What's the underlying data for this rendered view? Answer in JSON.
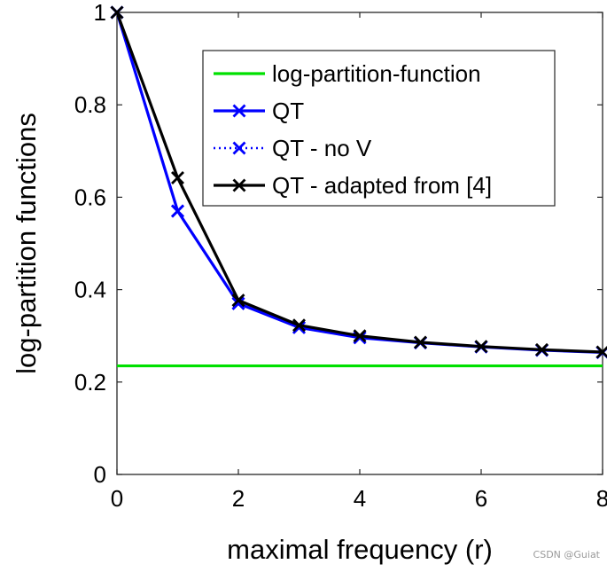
{
  "chart_data": {
    "type": "line",
    "title": "",
    "xlabel": "maximal frequency (r)",
    "ylabel": "log-partition functions",
    "xlim": [
      0,
      8
    ],
    "ylim": [
      0,
      1
    ],
    "xticks": [
      "0",
      "2",
      "4",
      "6",
      "8"
    ],
    "yticks": [
      "0",
      "0.2",
      "0.4",
      "0.6",
      "0.8",
      "1"
    ],
    "legend_position": "top-right",
    "x": [
      0,
      1,
      2,
      3,
      4,
      5,
      6,
      7,
      8
    ],
    "series": [
      {
        "name": "log-partition-function",
        "color": "#00e000",
        "style": "solid",
        "marker": "none",
        "values": [
          0.235,
          0.235,
          0.235,
          0.235,
          0.235,
          0.235,
          0.235,
          0.235,
          0.235
        ]
      },
      {
        "name": "QT",
        "color": "#0000ff",
        "style": "solid",
        "marker": "x",
        "values": [
          1.0,
          0.57,
          0.37,
          0.318,
          0.296,
          0.285,
          0.276,
          0.269,
          0.264
        ]
      },
      {
        "name": "QT - no V",
        "color": "#0000ff",
        "style": "dotted",
        "marker": "x",
        "values": [
          1.0,
          0.57,
          0.37,
          0.318,
          0.296,
          0.285,
          0.276,
          0.269,
          0.264
        ]
      },
      {
        "name": "QT - adapted from [4]",
        "color": "#000000",
        "style": "solid",
        "marker": "x",
        "values": [
          1.0,
          0.642,
          0.377,
          0.323,
          0.3,
          0.286,
          0.277,
          0.27,
          0.265
        ]
      }
    ]
  },
  "watermark": "CSDN @Guiat"
}
